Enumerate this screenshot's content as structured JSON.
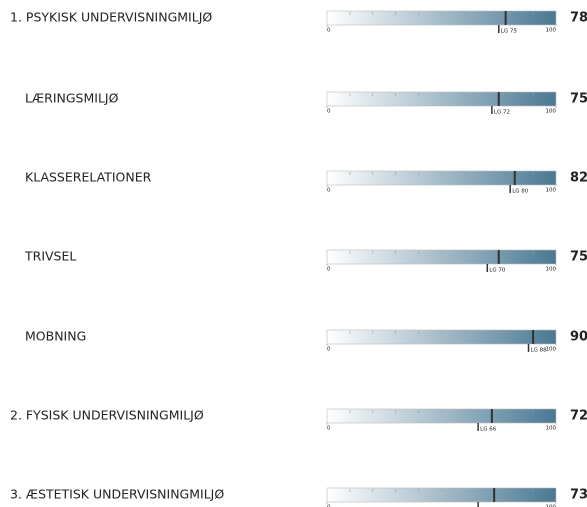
{
  "chart_data": {
    "type": "gauge",
    "categories": [
      "1. PSYKISK UNDERVISNINGMILJØ",
      "LÆRINGSMILJØ",
      "KLASSERELATIONER",
      "TRIVSEL",
      "MOBNING",
      "2. FYSISK UNDERVISNINGMILJØ",
      "3. ÆSTETISK UNDERVISNINGMILJØ"
    ],
    "values": [
      78,
      75,
      82,
      75,
      90,
      72,
      73
    ],
    "benchmarks": [
      75,
      72,
      80,
      70,
      88,
      66,
      66
    ],
    "benchmark_labels": [
      "LG 75",
      "LG 72",
      "LG 80",
      "LG 70",
      "LG 88",
      "LG 66",
      null
    ],
    "xlim": [
      0,
      100
    ],
    "xticks": [
      0,
      100
    ],
    "minor_xticks": [
      10,
      20,
      30,
      40,
      50,
      60,
      70,
      80,
      90
    ],
    "color": "#4a7893"
  }
}
